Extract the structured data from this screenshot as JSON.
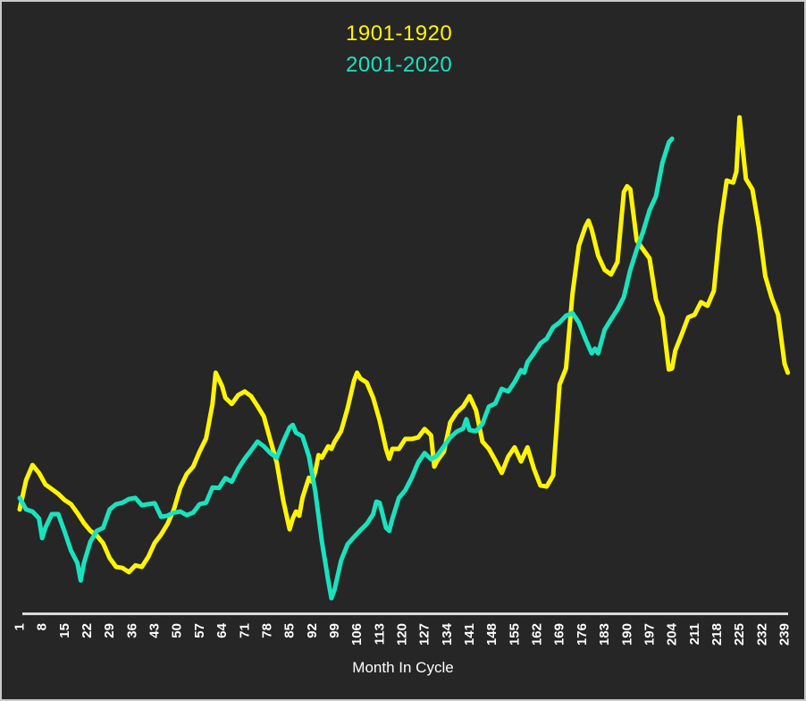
{
  "frame": {
    "background_color": "#262626",
    "border_color": "#c9c9c9"
  },
  "legend": {
    "items": [
      {
        "label": "1901-1920",
        "color": "#fff500"
      },
      {
        "label": "2001-2020",
        "color": "#19e3be"
      }
    ]
  },
  "chart_data": {
    "type": "line",
    "title": "",
    "xlabel": "Month In Cycle",
    "ylabel": "",
    "grid": false,
    "legend_position": "top-center-inside",
    "x_axis": {
      "min": 1,
      "max": 241,
      "tick_labels": [
        1,
        8,
        15,
        22,
        29,
        36,
        43,
        50,
        57,
        64,
        71,
        78,
        85,
        92,
        99,
        106,
        113,
        120,
        127,
        134,
        141,
        148,
        155,
        162,
        169,
        176,
        183,
        190,
        197,
        204,
        211,
        218,
        225,
        232,
        239
      ],
      "tick_label_rotation_deg": -90,
      "line_color": "#d9d9d9",
      "tick_text_color": "#ffffff"
    },
    "y_axis": {
      "visible": false,
      "note": "no y axis shown; values are normalized 0-100 estimates of line height",
      "ylim": [
        0,
        100
      ]
    },
    "series": [
      {
        "name": "1901-1920",
        "color": "#fff500",
        "points": [
          [
            1,
            19.9
          ],
          [
            3,
            25.5
          ],
          [
            5,
            28.4
          ],
          [
            7,
            26.9
          ],
          [
            9,
            24.7
          ],
          [
            11,
            23.8
          ],
          [
            13,
            22.9
          ],
          [
            15,
            21.7
          ],
          [
            17,
            20.9
          ],
          [
            19,
            19.2
          ],
          [
            21,
            17.3
          ],
          [
            23,
            15.8
          ],
          [
            25,
            14.9
          ],
          [
            27,
            13.4
          ],
          [
            29,
            10.6
          ],
          [
            31,
            8.9
          ],
          [
            33,
            8.7
          ],
          [
            35,
            7.9
          ],
          [
            37,
            9.2
          ],
          [
            39,
            8.9
          ],
          [
            41,
            10.8
          ],
          [
            43,
            13.5
          ],
          [
            45,
            15.1
          ],
          [
            47,
            17.1
          ],
          [
            49,
            19.9
          ],
          [
            51,
            24.1
          ],
          [
            53,
            26.7
          ],
          [
            55,
            28.1
          ],
          [
            57,
            31.0
          ],
          [
            59,
            33.5
          ],
          [
            61,
            40.1
          ],
          [
            62,
            46.1
          ],
          [
            64,
            43.5
          ],
          [
            65,
            41.3
          ],
          [
            67,
            40.1
          ],
          [
            69,
            41.8
          ],
          [
            71,
            42.5
          ],
          [
            73,
            41.6
          ],
          [
            75,
            39.7
          ],
          [
            77,
            37.7
          ],
          [
            79,
            33.2
          ],
          [
            81,
            28.9
          ],
          [
            83,
            21.7
          ],
          [
            85,
            16.1
          ],
          [
            86,
            18.2
          ],
          [
            87,
            19.5
          ],
          [
            88,
            18.7
          ],
          [
            89,
            22.1
          ],
          [
            91,
            26.0
          ],
          [
            92,
            25.2
          ],
          [
            93,
            27.2
          ],
          [
            94,
            30.3
          ],
          [
            95,
            29.8
          ],
          [
            97,
            32.0
          ],
          [
            98,
            31.5
          ],
          [
            99,
            32.9
          ],
          [
            101,
            34.9
          ],
          [
            103,
            39.2
          ],
          [
            105,
            44.5
          ],
          [
            106,
            46.1
          ],
          [
            107,
            45.0
          ],
          [
            109,
            44.2
          ],
          [
            111,
            41.3
          ],
          [
            113,
            37.0
          ],
          [
            115,
            31.5
          ],
          [
            116,
            29.6
          ],
          [
            117,
            31.5
          ],
          [
            119,
            31.5
          ],
          [
            121,
            33.4
          ],
          [
            123,
            33.4
          ],
          [
            125,
            33.7
          ],
          [
            127,
            35.3
          ],
          [
            129,
            34.1
          ],
          [
            130,
            28.1
          ],
          [
            131,
            29.3
          ],
          [
            133,
            31.0
          ],
          [
            135,
            36.6
          ],
          [
            137,
            38.5
          ],
          [
            139,
            39.6
          ],
          [
            141,
            41.6
          ],
          [
            143,
            38.9
          ],
          [
            145,
            32.9
          ],
          [
            147,
            31.5
          ],
          [
            149,
            29.3
          ],
          [
            151,
            26.9
          ],
          [
            153,
            30.0
          ],
          [
            155,
            31.8
          ],
          [
            157,
            29.1
          ],
          [
            159,
            31.8
          ],
          [
            161,
            27.7
          ],
          [
            163,
            24.5
          ],
          [
            165,
            24.3
          ],
          [
            167,
            26.4
          ],
          [
            168,
            34.9
          ],
          [
            169,
            43.8
          ],
          [
            171,
            46.9
          ],
          [
            173,
            61.1
          ],
          [
            175,
            70.4
          ],
          [
            177,
            74.0
          ],
          [
            178,
            75.2
          ],
          [
            179,
            73.5
          ],
          [
            181,
            68.5
          ],
          [
            183,
            65.8
          ],
          [
            185,
            64.9
          ],
          [
            187,
            67.3
          ],
          [
            189,
            80.7
          ],
          [
            190,
            81.8
          ],
          [
            191,
            81.2
          ],
          [
            193,
            71.4
          ],
          [
            195,
            69.7
          ],
          [
            197,
            68.0
          ],
          [
            199,
            60.1
          ],
          [
            201,
            56.8
          ],
          [
            203,
            46.7
          ],
          [
            204,
            46.9
          ],
          [
            205,
            50.3
          ],
          [
            207,
            53.4
          ],
          [
            209,
            56.7
          ],
          [
            211,
            57.2
          ],
          [
            213,
            59.6
          ],
          [
            215,
            58.9
          ],
          [
            217,
            61.8
          ],
          [
            219,
            74.3
          ],
          [
            221,
            82.9
          ],
          [
            223,
            82.5
          ],
          [
            224,
            84.6
          ],
          [
            225,
            95.0
          ],
          [
            226,
            88.9
          ],
          [
            227,
            83.2
          ],
          [
            229,
            81.2
          ],
          [
            231,
            74.0
          ],
          [
            233,
            64.6
          ],
          [
            235,
            60.4
          ],
          [
            237,
            57.2
          ],
          [
            239,
            47.8
          ],
          [
            240,
            46.1
          ]
        ]
      },
      {
        "name": "2001-2020",
        "color": "#19e3be",
        "points": [
          [
            1,
            22.1
          ],
          [
            3,
            19.9
          ],
          [
            5,
            19.5
          ],
          [
            7,
            18.2
          ],
          [
            8,
            14.4
          ],
          [
            9,
            16.4
          ],
          [
            11,
            19.0
          ],
          [
            13,
            19.0
          ],
          [
            15,
            15.6
          ],
          [
            17,
            12.0
          ],
          [
            19,
            9.6
          ],
          [
            20,
            6.3
          ],
          [
            21,
            9.6
          ],
          [
            23,
            13.7
          ],
          [
            25,
            15.8
          ],
          [
            27,
            16.4
          ],
          [
            29,
            19.9
          ],
          [
            31,
            20.9
          ],
          [
            33,
            21.2
          ],
          [
            35,
            21.9
          ],
          [
            37,
            22.1
          ],
          [
            39,
            20.7
          ],
          [
            41,
            20.9
          ],
          [
            43,
            21.1
          ],
          [
            45,
            18.5
          ],
          [
            47,
            18.7
          ],
          [
            49,
            19.3
          ],
          [
            51,
            19.5
          ],
          [
            53,
            18.8
          ],
          [
            55,
            19.3
          ],
          [
            57,
            20.9
          ],
          [
            59,
            21.2
          ],
          [
            61,
            24.1
          ],
          [
            63,
            24.0
          ],
          [
            65,
            25.9
          ],
          [
            67,
            25.2
          ],
          [
            69,
            27.7
          ],
          [
            71,
            29.6
          ],
          [
            73,
            31.2
          ],
          [
            75,
            32.9
          ],
          [
            77,
            32.0
          ],
          [
            79,
            30.7
          ],
          [
            81,
            29.8
          ],
          [
            83,
            32.9
          ],
          [
            85,
            35.6
          ],
          [
            86,
            36.1
          ],
          [
            87,
            34.6
          ],
          [
            89,
            33.9
          ],
          [
            91,
            30.1
          ],
          [
            93,
            23.3
          ],
          [
            95,
            13.9
          ],
          [
            97,
            6.3
          ],
          [
            98,
            2.9
          ],
          [
            99,
            4.6
          ],
          [
            101,
            10.1
          ],
          [
            103,
            13.2
          ],
          [
            105,
            14.6
          ],
          [
            107,
            15.9
          ],
          [
            109,
            17.1
          ],
          [
            111,
            19.0
          ],
          [
            112,
            21.4
          ],
          [
            113,
            21.2
          ],
          [
            115,
            16.4
          ],
          [
            116,
            15.8
          ],
          [
            117,
            18.2
          ],
          [
            119,
            22.1
          ],
          [
            121,
            23.6
          ],
          [
            123,
            26.0
          ],
          [
            125,
            28.9
          ],
          [
            127,
            30.7
          ],
          [
            129,
            29.5
          ],
          [
            131,
            30.3
          ],
          [
            133,
            32.0
          ],
          [
            135,
            33.7
          ],
          [
            137,
            34.8
          ],
          [
            139,
            35.4
          ],
          [
            140,
            37.2
          ],
          [
            141,
            35.1
          ],
          [
            143,
            34.9
          ],
          [
            145,
            36.3
          ],
          [
            147,
            39.6
          ],
          [
            149,
            40.2
          ],
          [
            151,
            43.0
          ],
          [
            153,
            42.5
          ],
          [
            155,
            44.3
          ],
          [
            157,
            46.6
          ],
          [
            158,
            46.1
          ],
          [
            159,
            48.1
          ],
          [
            161,
            49.8
          ],
          [
            163,
            51.7
          ],
          [
            165,
            52.6
          ],
          [
            167,
            54.8
          ],
          [
            169,
            55.7
          ],
          [
            171,
            57.0
          ],
          [
            173,
            57.5
          ],
          [
            175,
            55.7
          ],
          [
            177,
            52.6
          ],
          [
            179,
            49.8
          ],
          [
            180,
            50.7
          ],
          [
            181,
            49.8
          ],
          [
            183,
            54.3
          ],
          [
            185,
            56.3
          ],
          [
            187,
            58.2
          ],
          [
            189,
            60.6
          ],
          [
            191,
            65.8
          ],
          [
            193,
            69.7
          ],
          [
            195,
            73.1
          ],
          [
            197,
            77.2
          ],
          [
            199,
            79.9
          ],
          [
            201,
            86.3
          ],
          [
            203,
            90.2
          ],
          [
            204,
            90.9
          ]
        ]
      }
    ]
  }
}
